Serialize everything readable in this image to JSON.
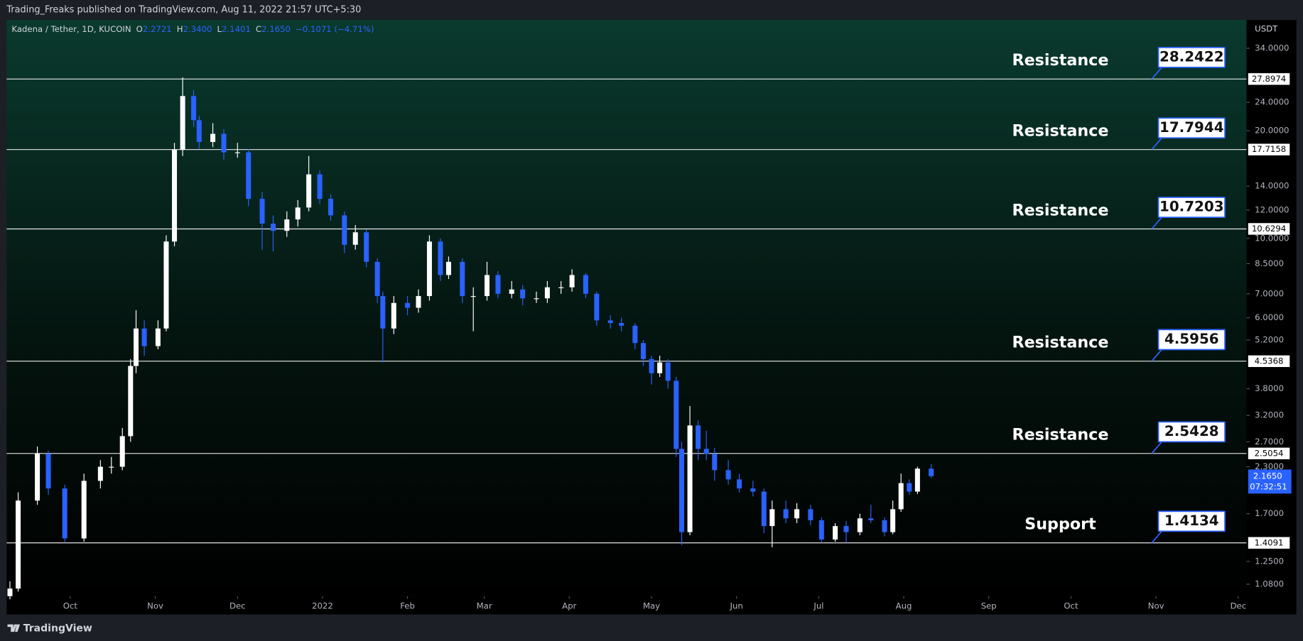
{
  "header": {
    "published": "Trading_Freaks published on TradingView.com, Aug 11, 2022 21:57 UTC+5:30"
  },
  "footer": {
    "brand": "TradingView"
  },
  "chart_data": {
    "type": "candlestick",
    "title": "Kadena / Tether, 1D, KUCOIN",
    "ohlc_legend": {
      "items": [
        {
          "key": "O",
          "value": "2.2721"
        },
        {
          "key": "H",
          "value": "2.3400"
        },
        {
          "key": "L",
          "value": "2.1401"
        },
        {
          "key": "C",
          "value": "2.1650"
        }
      ],
      "change": "−0.1071 (−4.71%)"
    },
    "currency": "USDT",
    "countdown": "07:32:51",
    "up_color": "#ffffff",
    "down_color": "#2962ff",
    "log_scale": true,
    "grid": false,
    "xlim": [
      -1.2,
      451
    ],
    "xticks": [
      {
        "value": 22,
        "label": "Oct"
      },
      {
        "value": 53,
        "label": "Nov"
      },
      {
        "value": 83,
        "label": "Dec"
      },
      {
        "value": 114,
        "label": "2022"
      },
      {
        "value": 145,
        "label": "Feb"
      },
      {
        "value": 173,
        "label": "Mar"
      },
      {
        "value": 204,
        "label": "Apr"
      },
      {
        "value": 234,
        "label": "May"
      },
      {
        "value": 265,
        "label": "Jun"
      },
      {
        "value": 295,
        "label": "Jul"
      },
      {
        "value": 326,
        "label": "Aug"
      },
      {
        "value": 357,
        "label": "Sep"
      },
      {
        "value": 387,
        "label": "Oct"
      },
      {
        "value": 418,
        "label": "Nov"
      },
      {
        "value": 448,
        "label": "Dec"
      }
    ],
    "ylim": [
      1.0,
      40.8
    ],
    "yticks": [
      {
        "value": 34,
        "label": "34.0000"
      },
      {
        "value": 24,
        "label": "24.0000"
      },
      {
        "value": 20,
        "label": "20.0000"
      },
      {
        "value": 14,
        "label": "14.0000"
      },
      {
        "value": 12,
        "label": "12.0000"
      },
      {
        "value": 10,
        "label": "10.0000"
      },
      {
        "value": 8.5,
        "label": "8.5000"
      },
      {
        "value": 7,
        "label": "7.0000"
      },
      {
        "value": 6,
        "label": "6.0000"
      },
      {
        "value": 5.2,
        "label": "5.2000"
      },
      {
        "value": 3.8,
        "label": "3.8000"
      },
      {
        "value": 3.2,
        "label": "3.2000"
      },
      {
        "value": 2.7,
        "label": "2.7000"
      },
      {
        "value": 2.3,
        "label": "2.3000"
      },
      {
        "value": 1.7,
        "label": "1.7000"
      },
      {
        "value": 1.25,
        "label": "1.2500"
      },
      {
        "value": 1.08,
        "label": "1.0800"
      }
    ],
    "levels": [
      {
        "label": "Resistance",
        "target": 28.2422,
        "value": 27.8974
      },
      {
        "label": "Resistance",
        "target": 17.7944,
        "value": 17.7158
      },
      {
        "label": "Resistance",
        "target": 10.7203,
        "value": 10.6294
      },
      {
        "label": "Resistance",
        "target": 4.5956,
        "value": 4.5368
      },
      {
        "label": "Resistance",
        "target": 2.5428,
        "value": 2.5054
      },
      {
        "label": "Support",
        "target": 1.4134,
        "value": 1.4091
      }
    ],
    "x": [
      0,
      3,
      10,
      14,
      20,
      27,
      33,
      37,
      41,
      44,
      46,
      49,
      54,
      57,
      60,
      63,
      67,
      69,
      74,
      78,
      83,
      87,
      92,
      96,
      101,
      105,
      109,
      113,
      117,
      122,
      126,
      130,
      134,
      136,
      140,
      145,
      149,
      153,
      157,
      160,
      165,
      169,
      174,
      178,
      183,
      187,
      192,
      196,
      201,
      205,
      210,
      214,
      219,
      223,
      228,
      231,
      234,
      237,
      240,
      243,
      245,
      248,
      251,
      254,
      257,
      262,
      266,
      271,
      275,
      278,
      283,
      287,
      292,
      296,
      301,
      305,
      310,
      314,
      319,
      322,
      325,
      328,
      331,
      336
    ],
    "open": [
      1.0,
      1.05,
      1.85,
      2.5,
      2.0,
      1.45,
      2.1,
      2.3,
      2.3,
      2.8,
      4.4,
      5.6,
      5.0,
      5.6,
      9.8,
      17.7,
      25,
      21.4,
      18.6,
      19.6,
      17.4,
      17.4,
      12.9,
      11.0,
      10.5,
      11.3,
      12.2,
      15.1,
      12.9,
      11.6,
      9.6,
      10.4,
      8.6,
      6.9,
      5.6,
      6.6,
      6.4,
      6.9,
      9.8,
      7.9,
      8.6,
      6.9,
      6.9,
      7.9,
      7.0,
      7.2,
      6.8,
      6.8,
      7.3,
      7.3,
      7.9,
      7.0,
      5.9,
      5.8,
      5.7,
      5.1,
      4.6,
      4.2,
      4.5,
      4.0,
      2.58,
      1.51,
      3.0,
      2.58,
      2.5,
      2.25,
      2.12,
      2.0,
      1.96,
      1.57,
      1.75,
      1.65,
      1.75,
      1.63,
      1.44,
      1.57,
      1.51,
      1.65,
      1.63,
      1.51,
      1.75,
      2.07,
      1.96,
      2.2721
    ],
    "high": [
      1.1,
      1.95,
      2.62,
      2.55,
      2.05,
      2.2,
      2.4,
      2.45,
      2.95,
      4.6,
      6.3,
      5.9,
      5.9,
      10.2,
      18.5,
      28.2,
      26,
      22,
      21,
      20.2,
      18.5,
      17.8,
      13.5,
      11.6,
      11.9,
      12.8,
      17.0,
      15.5,
      13.3,
      11.9,
      10.9,
      10.6,
      8.8,
      7.1,
      6.9,
      6.9,
      7.2,
      10.2,
      10.0,
      8.9,
      8.8,
      7.3,
      8.6,
      8.1,
      7.6,
      7.4,
      7.1,
      7.6,
      7.6,
      8.2,
      8.0,
      7.1,
      6.1,
      6.0,
      5.8,
      5.2,
      4.7,
      4.7,
      4.6,
      4.1,
      2.7,
      3.4,
      3.1,
      2.9,
      2.6,
      2.4,
      2.2,
      2.1,
      2.0,
      1.85,
      1.85,
      1.82,
      1.8,
      1.66,
      1.6,
      1.62,
      1.7,
      1.8,
      1.66,
      1.85,
      2.2,
      2.12,
      2.3,
      2.34
    ],
    "low": [
      0.98,
      1.03,
      1.8,
      1.92,
      1.41,
      1.42,
      2.0,
      2.2,
      2.25,
      2.7,
      4.2,
      4.7,
      4.9,
      5.5,
      9.5,
      17.0,
      20.5,
      17.8,
      18.0,
      16.6,
      16.8,
      12.3,
      9.3,
      9.2,
      10.1,
      10.8,
      11.9,
      12.5,
      11.2,
      9.1,
      9.3,
      8.3,
      6.6,
      4.5,
      5.4,
      6.1,
      6.2,
      6.7,
      7.6,
      7.7,
      6.6,
      5.5,
      6.7,
      6.8,
      6.8,
      6.5,
      6.6,
      6.6,
      7.0,
      7.1,
      6.8,
      5.7,
      5.6,
      5.5,
      4.9,
      4.4,
      3.9,
      4.1,
      3.8,
      2.45,
      1.39,
      1.48,
      2.4,
      2.4,
      2.1,
      2.05,
      1.95,
      1.9,
      1.5,
      1.37,
      1.6,
      1.6,
      1.58,
      1.41,
      1.42,
      1.41,
      1.48,
      1.6,
      1.47,
      1.49,
      1.72,
      1.92,
      1.93,
      2.1401
    ],
    "close": [
      1.05,
      1.85,
      2.5,
      2.0,
      1.45,
      2.1,
      2.3,
      2.3,
      2.8,
      4.4,
      5.6,
      5.0,
      5.6,
      9.8,
      17.7,
      25,
      21.4,
      18.6,
      19.6,
      17.4,
      17.4,
      12.9,
      11.0,
      10.5,
      11.3,
      12.2,
      15.1,
      12.9,
      11.6,
      9.6,
      10.4,
      8.6,
      6.9,
      5.6,
      6.6,
      6.4,
      6.9,
      9.8,
      7.9,
      8.6,
      6.9,
      6.9,
      7.9,
      7.0,
      7.2,
      6.8,
      6.8,
      7.3,
      7.3,
      7.9,
      7.0,
      5.9,
      5.8,
      5.7,
      5.1,
      4.6,
      4.2,
      4.5,
      4.0,
      2.58,
      1.51,
      3.0,
      2.58,
      2.5,
      2.25,
      2.12,
      2.0,
      1.96,
      1.57,
      1.75,
      1.65,
      1.75,
      1.63,
      1.44,
      1.57,
      1.51,
      1.65,
      1.63,
      1.51,
      1.75,
      2.07,
      1.96,
      2.2721,
      2.165
    ]
  }
}
